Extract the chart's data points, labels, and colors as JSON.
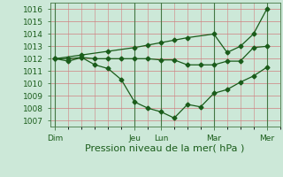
{
  "xlabel": "Pression niveau de la mer( hPa )",
  "bg_color": "#cce8d8",
  "grid_color": "#d08080",
  "line_color": "#1a5c1a",
  "ylim": [
    1006.5,
    1016.5
  ],
  "yticks": [
    1007,
    1008,
    1009,
    1010,
    1011,
    1012,
    1013,
    1014,
    1015,
    1016
  ],
  "xlim": [
    -0.2,
    8.5
  ],
  "day_positions": [
    0,
    3.0,
    4.0,
    6.0,
    8.0
  ],
  "day_labels": [
    "Dim",
    "Jeu",
    "Lun",
    "Mar",
    "Mer"
  ],
  "line_dip_x": [
    0.0,
    0.5,
    1.0,
    1.5,
    2.0,
    2.5,
    3.0,
    3.5,
    4.0,
    4.5,
    5.0,
    5.5,
    6.0,
    6.5,
    7.0,
    7.5,
    8.0
  ],
  "line_dip_y": [
    1012.0,
    1011.8,
    1012.1,
    1011.5,
    1011.2,
    1010.3,
    1008.5,
    1008.0,
    1007.7,
    1007.2,
    1008.3,
    1008.1,
    1009.2,
    1009.5,
    1010.1,
    1010.6,
    1011.3
  ],
  "line_flat_x": [
    0.0,
    0.5,
    1.0,
    1.5,
    2.0,
    2.5,
    3.0,
    3.5,
    4.0,
    4.5,
    5.0,
    5.5,
    6.0,
    6.5,
    7.0,
    7.5,
    8.0
  ],
  "line_flat_y": [
    1012.0,
    1012.0,
    1012.1,
    1012.0,
    1012.0,
    1012.0,
    1012.0,
    1012.0,
    1011.9,
    1011.9,
    1011.5,
    1011.5,
    1011.5,
    1011.8,
    1011.8,
    1012.9,
    1013.0
  ],
  "line_rise_x": [
    0.0,
    1.0,
    2.0,
    3.0,
    3.5,
    4.0,
    4.5,
    5.0,
    6.0,
    6.5,
    7.0,
    7.5,
    8.0
  ],
  "line_rise_y": [
    1012.0,
    1012.3,
    1012.6,
    1012.9,
    1013.1,
    1013.3,
    1013.5,
    1013.7,
    1014.0,
    1012.5,
    1013.0,
    1014.0,
    1016.0
  ],
  "marker_size": 2.5,
  "xlabel_fontsize": 8,
  "tick_fontsize": 6.5
}
